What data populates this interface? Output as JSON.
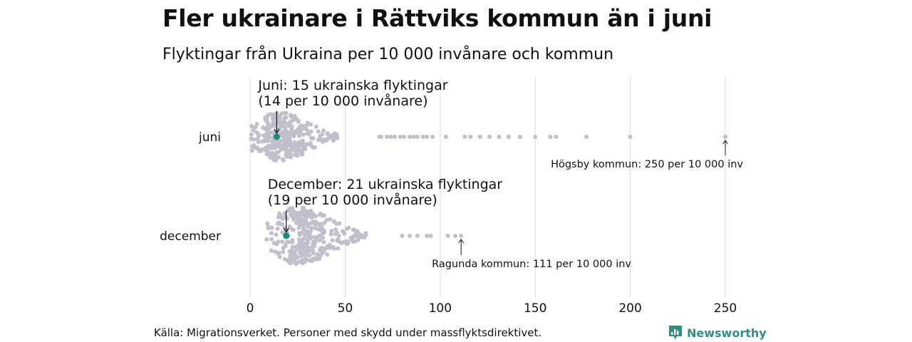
{
  "title": "Fler ukrainare i Rättviks kommun än i juni",
  "subtitle": "Flyktingar från Ukraina per 10 000 invånare och kommun",
  "source": "Källa: Migrationsverket. Personer med skydd under massflyktsdirektivet.",
  "brand": "Newsworthy",
  "colors": {
    "dot": "#c2bfcc",
    "highlight": "#1a8a7a",
    "grid": "#dddddd",
    "text": "#111111"
  },
  "chart_data": {
    "type": "scatter",
    "subtype": "beeswarm",
    "xlim": [
      0,
      250
    ],
    "xticks": [
      0,
      50,
      100,
      150,
      200,
      250
    ],
    "grid": true,
    "categories": [
      {
        "name": "juni",
        "highlight": {
          "value": 14,
          "label_line1": "Juni: 15 ukrainska flyktingar",
          "label_line2": "(14 per 10 000 invånare)"
        },
        "max_annotation": {
          "value": 250,
          "label": "Högsby kommun: 250 per 10 000 inv"
        },
        "outliers": [
          68,
          69,
          72,
          74,
          76,
          79,
          81,
          84,
          86,
          88,
          91,
          93,
          96,
          103,
          113,
          116,
          121,
          126,
          131,
          136,
          142,
          150,
          158,
          161,
          177,
          200,
          250
        ]
      },
      {
        "name": "december",
        "highlight": {
          "value": 19,
          "label_line1": "December: 21 ukrainska flyktingar",
          "label_line2": "(19 per 10 000 invånare)"
        },
        "max_annotation": {
          "value": 111,
          "label": "Ragunda kommun: 111 per 10 000 inv"
        },
        "outliers": [
          80,
          84,
          88,
          93,
          95,
          104,
          108,
          111
        ]
      }
    ]
  }
}
